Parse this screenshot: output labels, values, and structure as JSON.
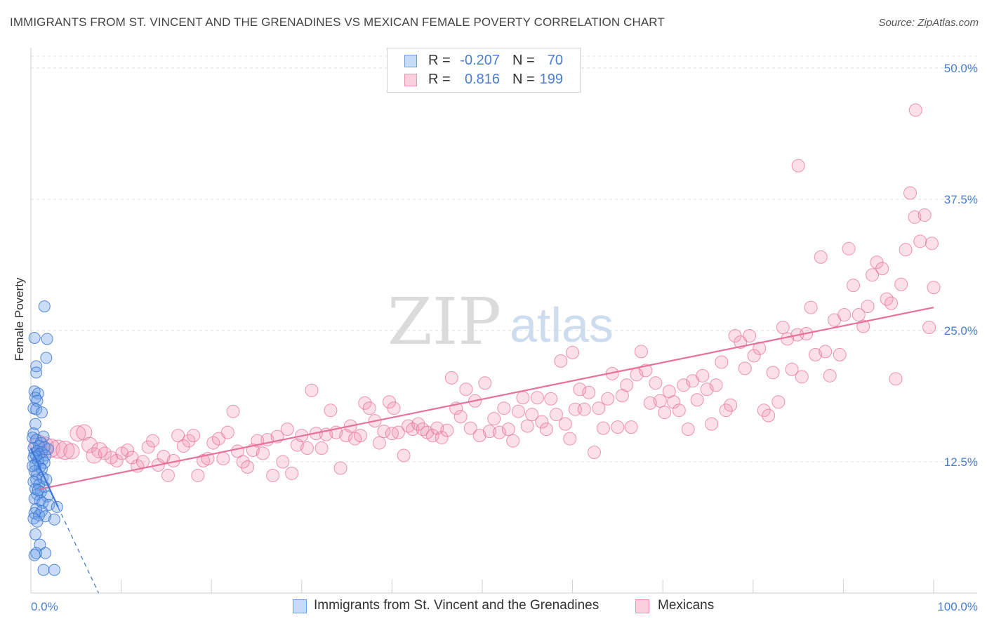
{
  "title": "IMMIGRANTS FROM ST. VINCENT AND THE GRENADINES VS MEXICAN FEMALE POVERTY CORRELATION CHART",
  "source": "Source: ZipAtlas.com",
  "watermark": {
    "zip": "ZIP",
    "atlas": "atlas"
  },
  "legend_top": {
    "rows": [
      {
        "r_label": "R =",
        "r_value": "-0.207",
        "n_label": "N =",
        "n_value": "70"
      },
      {
        "r_label": "R =",
        "r_value": "0.816",
        "n_label": "N =",
        "n_value": "199"
      }
    ]
  },
  "chart_data": {
    "type": "scatter",
    "title": "IMMIGRANTS FROM ST. VINCENT AND THE GRENADINES VS MEXICAN FEMALE POVERTY CORRELATION CHART",
    "xlabel": "",
    "ylabel": "Female Poverty",
    "xlim": [
      0,
      100
    ],
    "ylim": [
      0,
      50
    ],
    "x_tick_labels": [
      "0.0%",
      "100.0%"
    ],
    "y_ticks": [
      12.5,
      25.0,
      37.5,
      50.0
    ],
    "y_tick_labels": [
      "12.5%",
      "25.0%",
      "37.5%",
      "50.0%"
    ],
    "grid": true,
    "legend_position": "bottom",
    "colors": {
      "blue": "#6a9ee6",
      "blue_line": "#3a74d4",
      "pink": "#f08fb0",
      "pink_line": "#e8709b"
    },
    "series": [
      {
        "name": "Immigrants from St. Vincent and the Grenadines",
        "color": "#6a9ee6",
        "R": -0.207,
        "N": 70,
        "trend": {
          "x0": 0,
          "y0": 13.8,
          "x1": 3.0,
          "y1": 8.2,
          "dash_to_x": 7.5,
          "dash_to_y": 0
        },
        "points": [
          [
            1.5,
            27.3
          ],
          [
            0.4,
            24.3
          ],
          [
            1.8,
            24.2
          ],
          [
            1.7,
            22.4
          ],
          [
            0.6,
            21.6
          ],
          [
            0.6,
            21.0
          ],
          [
            0.4,
            19.2
          ],
          [
            0.8,
            19.0
          ],
          [
            0.5,
            18.6
          ],
          [
            0.7,
            18.3
          ],
          [
            0.3,
            17.6
          ],
          [
            0.6,
            17.5
          ],
          [
            1.2,
            17.2
          ],
          [
            0.5,
            16.1
          ],
          [
            0.3,
            15.2
          ],
          [
            0.2,
            14.8
          ],
          [
            0.6,
            14.6
          ],
          [
            1.1,
            14.3
          ],
          [
            0.9,
            14.0
          ],
          [
            1.5,
            13.9
          ],
          [
            0.3,
            13.8
          ],
          [
            1.9,
            13.7
          ],
          [
            0.7,
            13.5
          ],
          [
            1.2,
            13.4
          ],
          [
            0.4,
            13.3
          ],
          [
            0.9,
            13.2
          ],
          [
            1.6,
            13.1
          ],
          [
            0.6,
            13.0
          ],
          [
            0.3,
            12.9
          ],
          [
            1.3,
            12.7
          ],
          [
            0.8,
            12.6
          ],
          [
            1.5,
            12.4
          ],
          [
            0.5,
            12.2
          ],
          [
            1.0,
            12.0
          ],
          [
            1.2,
            11.8
          ],
          [
            0.4,
            11.6
          ],
          [
            0.7,
            11.3
          ],
          [
            1.3,
            11.0
          ],
          [
            0.6,
            10.8
          ],
          [
            0.3,
            10.6
          ],
          [
            0.9,
            10.3
          ],
          [
            1.5,
            10.1
          ],
          [
            0.5,
            9.9
          ],
          [
            1.1,
            9.6
          ],
          [
            0.7,
            9.4
          ],
          [
            1.8,
            9.2
          ],
          [
            0.4,
            9.0
          ],
          [
            1.0,
            8.8
          ],
          [
            1.3,
            8.6
          ],
          [
            2.0,
            8.4
          ],
          [
            2.9,
            8.2
          ],
          [
            0.6,
            8.0
          ],
          [
            1.2,
            7.8
          ],
          [
            0.4,
            7.6
          ],
          [
            0.9,
            7.4
          ],
          [
            1.6,
            7.3
          ],
          [
            0.3,
            7.1
          ],
          [
            2.6,
            7.0
          ],
          [
            0.7,
            6.8
          ],
          [
            0.5,
            5.6
          ],
          [
            1.0,
            4.6
          ],
          [
            0.6,
            3.8
          ],
          [
            0.4,
            3.6
          ],
          [
            1.6,
            3.8
          ],
          [
            1.4,
            2.2
          ],
          [
            2.6,
            2.2
          ],
          [
            0.8,
            9.8
          ],
          [
            1.7,
            10.8
          ],
          [
            0.2,
            12.1
          ],
          [
            1.4,
            14.9
          ]
        ]
      },
      {
        "name": "Mexicans",
        "color": "#f08fb0",
        "R": 0.816,
        "N": 199,
        "trend": {
          "x0": 1,
          "y0": 9.9,
          "x1": 100,
          "y1": 27.2
        },
        "points": [
          [
            0.8,
            14.2
          ],
          [
            1.5,
            14.0
          ],
          [
            2.2,
            13.8
          ],
          [
            3.0,
            13.7
          ],
          [
            3.8,
            13.6
          ],
          [
            4.5,
            13.5
          ],
          [
            5.2,
            15.2
          ],
          [
            5.9,
            15.3
          ],
          [
            6.5,
            14.1
          ],
          [
            7.0,
            13.1
          ],
          [
            7.6,
            13.6
          ],
          [
            8.2,
            13.3
          ],
          [
            8.9,
            12.9
          ],
          [
            9.5,
            12.6
          ],
          [
            10.1,
            13.3
          ],
          [
            10.7,
            13.6
          ],
          [
            11.2,
            12.9
          ],
          [
            11.8,
            12.1
          ],
          [
            12.4,
            12.5
          ],
          [
            13.0,
            13.9
          ],
          [
            13.5,
            14.5
          ],
          [
            14.1,
            12.2
          ],
          [
            14.7,
            13.0
          ],
          [
            15.2,
            11.2
          ],
          [
            15.8,
            12.6
          ],
          [
            16.3,
            15.0
          ],
          [
            16.9,
            14.0
          ],
          [
            17.5,
            14.5
          ],
          [
            18.0,
            15.0
          ],
          [
            18.5,
            11.2
          ],
          [
            19.1,
            12.6
          ],
          [
            19.6,
            12.8
          ],
          [
            20.2,
            14.3
          ],
          [
            20.8,
            14.7
          ],
          [
            21.3,
            12.8
          ],
          [
            21.8,
            15.3
          ],
          [
            22.4,
            17.3
          ],
          [
            22.9,
            13.5
          ],
          [
            23.5,
            12.5
          ],
          [
            24.0,
            12.0
          ],
          [
            24.6,
            13.6
          ],
          [
            25.1,
            14.5
          ],
          [
            25.7,
            13.3
          ],
          [
            26.2,
            14.6
          ],
          [
            26.8,
            11.2
          ],
          [
            27.3,
            14.9
          ],
          [
            27.9,
            12.5
          ],
          [
            28.4,
            15.6
          ],
          [
            28.9,
            11.4
          ],
          [
            29.5,
            14.1
          ],
          [
            30.0,
            15.0
          ],
          [
            30.6,
            13.8
          ],
          [
            31.1,
            19.3
          ],
          [
            31.6,
            15.2
          ],
          [
            32.2,
            13.8
          ],
          [
            32.7,
            15.1
          ],
          [
            33.2,
            17.4
          ],
          [
            33.8,
            15.3
          ],
          [
            34.3,
            11.9
          ],
          [
            34.9,
            15.0
          ],
          [
            35.4,
            15.9
          ],
          [
            35.9,
            14.7
          ],
          [
            36.5,
            15.0
          ],
          [
            37.0,
            18.1
          ],
          [
            37.5,
            17.6
          ],
          [
            38.1,
            16.4
          ],
          [
            38.6,
            14.3
          ],
          [
            39.1,
            15.4
          ],
          [
            39.7,
            18.2
          ],
          [
            40.2,
            17.6
          ],
          [
            40.7,
            15.3
          ],
          [
            41.3,
            13.1
          ],
          [
            41.8,
            15.9
          ],
          [
            42.3,
            15.6
          ],
          [
            42.9,
            16.1
          ],
          [
            43.4,
            15.6
          ],
          [
            43.9,
            15.3
          ],
          [
            44.5,
            15.0
          ],
          [
            45.0,
            15.7
          ],
          [
            45.5,
            14.8
          ],
          [
            46.1,
            15.5
          ],
          [
            46.6,
            20.5
          ],
          [
            47.1,
            17.6
          ],
          [
            47.6,
            16.8
          ],
          [
            48.2,
            19.4
          ],
          [
            48.7,
            15.7
          ],
          [
            49.2,
            18.3
          ],
          [
            49.7,
            15.0
          ],
          [
            50.3,
            20.0
          ],
          [
            50.8,
            15.4
          ],
          [
            51.3,
            16.6
          ],
          [
            51.9,
            15.3
          ],
          [
            52.4,
            17.6
          ],
          [
            52.9,
            15.6
          ],
          [
            53.4,
            14.5
          ],
          [
            54.0,
            17.3
          ],
          [
            54.5,
            18.6
          ],
          [
            55.0,
            15.9
          ],
          [
            55.5,
            17.0
          ],
          [
            56.1,
            18.6
          ],
          [
            56.6,
            16.3
          ],
          [
            57.1,
            15.6
          ],
          [
            57.6,
            18.5
          ],
          [
            58.2,
            17.0
          ],
          [
            58.7,
            22.1
          ],
          [
            59.2,
            16.1
          ],
          [
            59.7,
            14.7
          ],
          [
            60.3,
            17.5
          ],
          [
            60.8,
            19.4
          ],
          [
            61.3,
            17.5
          ],
          [
            61.8,
            19.1
          ],
          [
            62.4,
            13.4
          ],
          [
            62.9,
            17.6
          ],
          [
            63.4,
            15.7
          ],
          [
            63.9,
            18.5
          ],
          [
            64.4,
            20.9
          ],
          [
            65.0,
            15.8
          ],
          [
            65.5,
            18.8
          ],
          [
            66.0,
            19.8
          ],
          [
            66.5,
            15.8
          ],
          [
            67.1,
            20.8
          ],
          [
            67.6,
            23.0
          ],
          [
            68.1,
            21.2
          ],
          [
            68.6,
            18.1
          ],
          [
            69.2,
            20.0
          ],
          [
            69.7,
            18.3
          ],
          [
            70.2,
            17.2
          ],
          [
            70.7,
            19.2
          ],
          [
            71.2,
            18.2
          ],
          [
            71.8,
            17.4
          ],
          [
            72.3,
            19.8
          ],
          [
            72.8,
            15.6
          ],
          [
            73.3,
            20.2
          ],
          [
            73.8,
            18.4
          ],
          [
            74.4,
            20.7
          ],
          [
            74.9,
            19.4
          ],
          [
            75.4,
            16.1
          ],
          [
            75.9,
            19.8
          ],
          [
            76.5,
            22.0
          ],
          [
            77.0,
            17.4
          ],
          [
            77.5,
            17.9
          ],
          [
            78.0,
            24.5
          ],
          [
            78.6,
            23.9
          ],
          [
            79.1,
            21.4
          ],
          [
            79.6,
            24.5
          ],
          [
            80.1,
            22.6
          ],
          [
            80.7,
            23.3
          ],
          [
            81.2,
            17.4
          ],
          [
            81.7,
            16.9
          ],
          [
            82.2,
            21.0
          ],
          [
            82.8,
            18.2
          ],
          [
            83.3,
            25.3
          ],
          [
            83.8,
            24.2
          ],
          [
            84.3,
            21.3
          ],
          [
            84.9,
            24.6
          ],
          [
            85.4,
            20.6
          ],
          [
            85.9,
            24.7
          ],
          [
            86.4,
            27.2
          ],
          [
            86.9,
            22.7
          ],
          [
            87.5,
            32.0
          ],
          [
            88.0,
            23.0
          ],
          [
            88.5,
            20.7
          ],
          [
            89.0,
            26.0
          ],
          [
            89.6,
            22.7
          ],
          [
            90.1,
            26.5
          ],
          [
            90.6,
            32.8
          ],
          [
            91.1,
            29.3
          ],
          [
            91.7,
            26.5
          ],
          [
            92.2,
            25.4
          ],
          [
            92.7,
            27.3
          ],
          [
            93.2,
            30.3
          ],
          [
            93.7,
            31.5
          ],
          [
            94.3,
            30.9
          ],
          [
            94.8,
            28.0
          ],
          [
            95.3,
            27.6
          ],
          [
            95.8,
            20.4
          ],
          [
            96.4,
            29.4
          ],
          [
            96.9,
            32.7
          ],
          [
            97.4,
            38.1
          ],
          [
            97.9,
            35.8
          ],
          [
            98.5,
            33.5
          ],
          [
            99.0,
            36.0
          ],
          [
            99.5,
            25.3
          ],
          [
            100.0,
            29.1
          ],
          [
            99.8,
            33.3
          ],
          [
            98.0,
            46.0
          ],
          [
            85.0,
            40.7
          ],
          [
            60.0,
            22.9
          ],
          [
            40.0,
            15.2
          ]
        ]
      }
    ]
  },
  "legend_bottom": {
    "items": [
      {
        "label": "Immigrants from St. Vincent and the Grenadines"
      },
      {
        "label": "Mexicans"
      }
    ]
  }
}
